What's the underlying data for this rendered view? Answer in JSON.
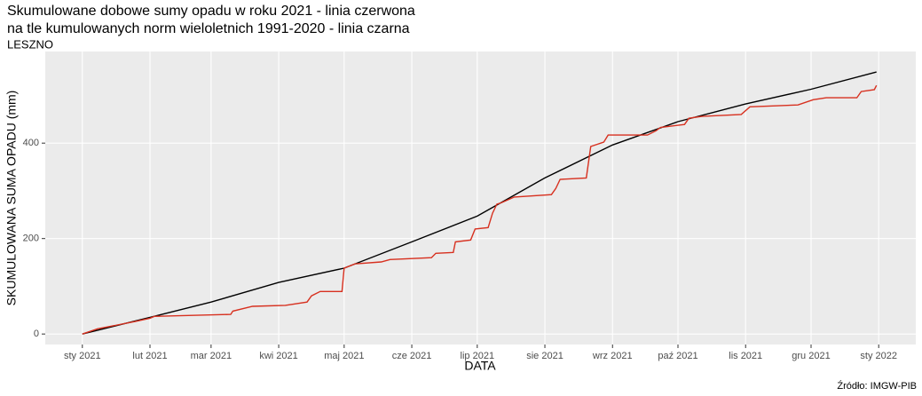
{
  "chart_data": {
    "type": "line",
    "title": [
      "Skumulowane dobowe sumy opadu w roku 2021 - linia czerwona",
      "na tle kumulowanych norm wieloletnich 1991-2020 - linia czarna"
    ],
    "subtitle": "LESZNO",
    "x_label": "DATA",
    "y_label": "SKUMULOWANA SUMA OPADU (mm)",
    "source": "Źródło: IMGW-PIB",
    "grid": true,
    "xlim": [
      "2020-12-15",
      "2022-01-18"
    ],
    "xticks": [
      {
        "value": "2021-01-01",
        "label": "sty 2021"
      },
      {
        "value": "2021-02-01",
        "label": "lut 2021"
      },
      {
        "value": "2021-03-01",
        "label": "mar 2021"
      },
      {
        "value": "2021-04-01",
        "label": "kwi 2021"
      },
      {
        "value": "2021-05-01",
        "label": "maj 2021"
      },
      {
        "value": "2021-06-01",
        "label": "cze 2021"
      },
      {
        "value": "2021-07-01",
        "label": "lip 2021"
      },
      {
        "value": "2021-08-01",
        "label": "sie 2021"
      },
      {
        "value": "2021-09-01",
        "label": "wrz 2021"
      },
      {
        "value": "2021-10-01",
        "label": "paź 2021"
      },
      {
        "value": "2021-11-01",
        "label": "lis 2021"
      },
      {
        "value": "2021-12-01",
        "label": "gru 2021"
      },
      {
        "value": "2022-01-01",
        "label": "sty 2022"
      }
    ],
    "ylim": [
      -22,
      592
    ],
    "yticks": [
      0,
      200,
      400
    ],
    "series": [
      {
        "color": "#000000",
        "x": [
          "2021-01-01",
          "2021-02-01",
          "2021-03-01",
          "2021-04-01",
          "2021-05-01",
          "2021-06-01",
          "2021-07-01",
          "2021-08-01",
          "2021-09-01",
          "2021-10-01",
          "2021-11-01",
          "2021-12-01",
          "2021-12-31"
        ],
        "values": [
          0,
          35,
          67,
          108,
          138,
          193,
          247,
          327,
          396,
          445,
          482,
          513,
          549
        ]
      },
      {
        "color": "#d7301f",
        "x": [
          "2021-01-01",
          "2021-01-08",
          "2021-01-16",
          "2021-01-25",
          "2021-02-01",
          "2021-02-03",
          "2021-03-10",
          "2021-03-11",
          "2021-03-20",
          "2021-04-04",
          "2021-04-14",
          "2021-04-16",
          "2021-04-20",
          "2021-04-30",
          "2021-05-01",
          "2021-05-06",
          "2021-05-18",
          "2021-05-22",
          "2021-06-10",
          "2021-06-12",
          "2021-06-20",
          "2021-06-21",
          "2021-06-28",
          "2021-06-30",
          "2021-07-06",
          "2021-07-08",
          "2021-07-10",
          "2021-07-12",
          "2021-07-18",
          "2021-08-04",
          "2021-08-06",
          "2021-08-08",
          "2021-08-20",
          "2021-08-22",
          "2021-08-28",
          "2021-08-30",
          "2021-09-17",
          "2021-09-21",
          "2021-09-23",
          "2021-10-04",
          "2021-10-06",
          "2021-10-12",
          "2021-10-30",
          "2021-11-03",
          "2021-11-25",
          "2021-12-02",
          "2021-12-08",
          "2021-12-22",
          "2021-12-24",
          "2021-12-30",
          "2021-12-31"
        ],
        "values": [
          0,
          11,
          18,
          26,
          33,
          37,
          41,
          48,
          58,
          60,
          67,
          80,
          89,
          89,
          138,
          147,
          151,
          156,
          160,
          169,
          171,
          193,
          197,
          220,
          223,
          253,
          272,
          275,
          287,
          292,
          305,
          324,
          327,
          393,
          402,
          417,
          417,
          426,
          433,
          439,
          452,
          456,
          460,
          476,
          480,
          491,
          495,
          495,
          508,
          512,
          521
        ]
      }
    ]
  }
}
